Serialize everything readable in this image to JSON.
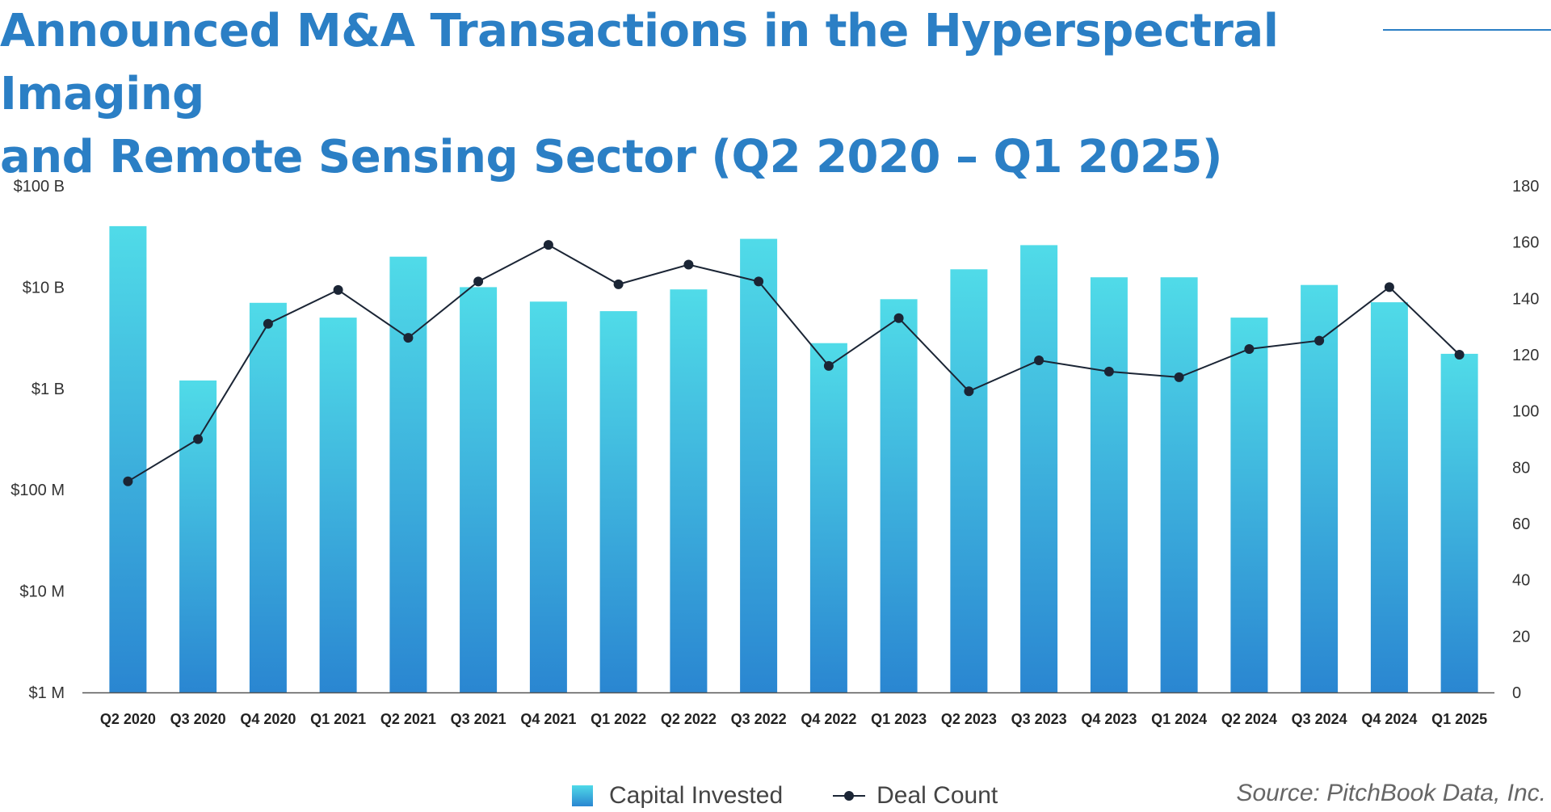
{
  "title": {
    "line1": "Announced M&A Transactions in the Hyperspectral Imaging",
    "line2": "and Remote Sensing Sector (Q2 2020 – Q1 2025)"
  },
  "legend": {
    "bars_label": "Capital Invested",
    "line_label": "Deal Count"
  },
  "source": "Source: PitchBook Data, Inc.",
  "colors": {
    "title": "#2b7fc5",
    "bar_top": "#50dbe8",
    "bar_bottom": "#2a86d1",
    "line": "#1b2535",
    "axis": "#555555"
  },
  "chart_data": {
    "type": "bar",
    "categories": [
      "Q2 2020",
      "Q3 2020",
      "Q4 2020",
      "Q1 2021",
      "Q2 2021",
      "Q3 2021",
      "Q4 2021",
      "Q1 2022",
      "Q2 2022",
      "Q3 2022",
      "Q4 2022",
      "Q1 2023",
      "Q2 2023",
      "Q3 2023",
      "Q4 2023",
      "Q1 2024",
      "Q2 2024",
      "Q3 2024",
      "Q4 2024",
      "Q1 2025"
    ],
    "title": "Announced M&A Transactions in the Hyperspectral Imaging and Remote Sensing Sector (Q2 2020 – Q1 2025)",
    "y_left": {
      "scale": "log",
      "ticks": [
        1000000,
        10000000,
        100000000,
        1000000000,
        10000000000,
        100000000000
      ],
      "tick_labels": [
        "$1 M",
        "$10 M",
        "$100 M",
        "$1 B",
        "$10 B",
        "$100 B"
      ],
      "ylim": [
        1000000,
        100000000000
      ]
    },
    "y_right": {
      "scale": "linear",
      "ticks": [
        0,
        20,
        40,
        60,
        80,
        100,
        120,
        140,
        160,
        180
      ],
      "tick_labels": [
        "0",
        "20",
        "40",
        "60",
        "80",
        "100",
        "120",
        "140",
        "160",
        "180"
      ],
      "ylim": [
        0,
        180
      ]
    },
    "grid": false,
    "legend_position": "bottom",
    "series": [
      {
        "name": "Capital Invested",
        "type": "bar",
        "axis": "left",
        "values": [
          40000000000,
          1200000000,
          7000000000,
          5000000000,
          20000000000,
          10000000000,
          7200000000,
          5800000000,
          9500000000,
          30000000000,
          2800000000,
          7600000000,
          15000000000,
          26000000000,
          12500000000,
          12500000000,
          5000000000,
          10500000000,
          7100000000,
          2200000000
        ]
      },
      {
        "name": "Deal Count",
        "type": "line",
        "axis": "right",
        "values": [
          75,
          90,
          131,
          143,
          126,
          146,
          159,
          145,
          152,
          146,
          116,
          133,
          107,
          118,
          114,
          112,
          122,
          125,
          144,
          120
        ]
      }
    ]
  }
}
